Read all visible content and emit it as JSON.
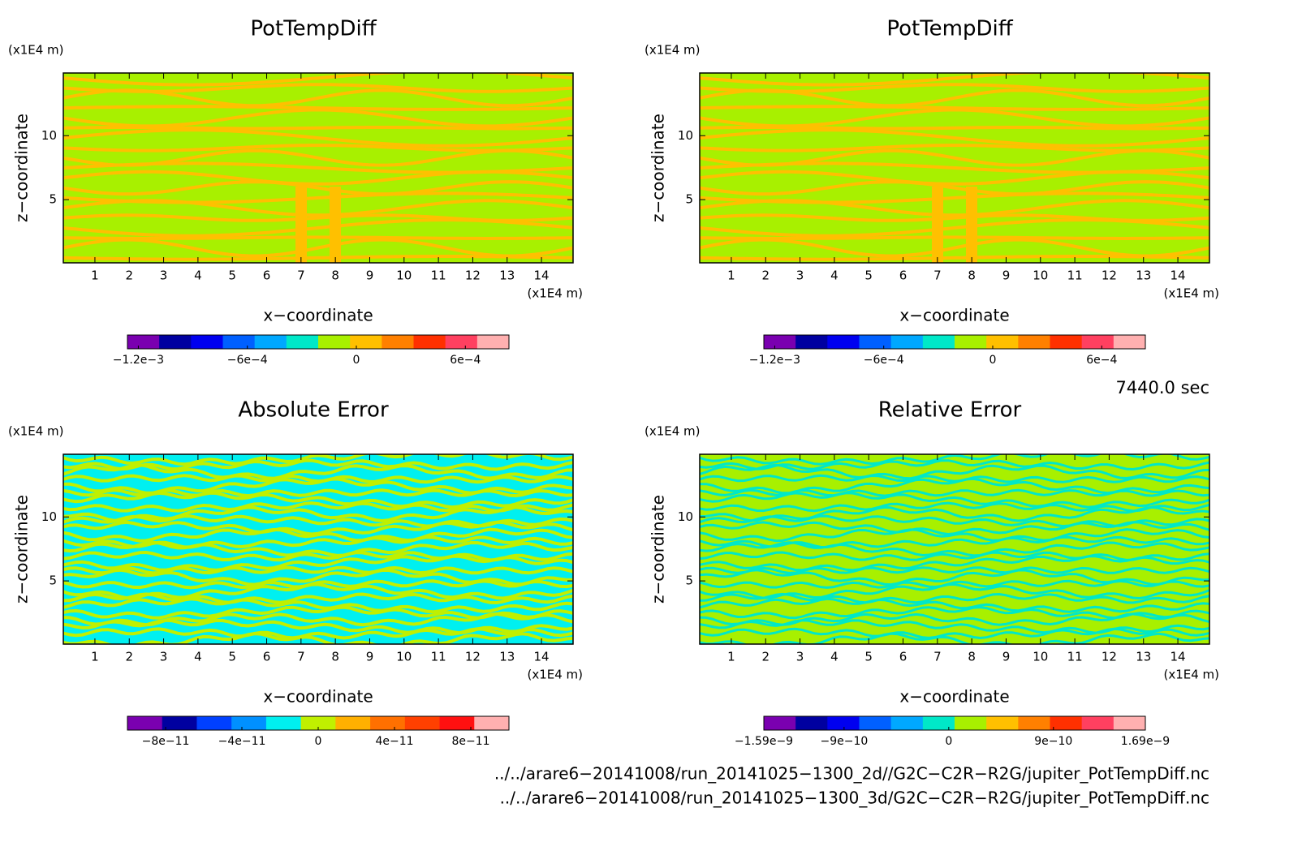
{
  "chart_data": [
    {
      "type": "contour",
      "title": "PotTempDiff",
      "xlabel": "x−coordinate",
      "ylabel": "z−coordinate",
      "x_unit": "(x1E4 m)",
      "y_unit": "(x1E4 m)",
      "xlim": [
        0.08,
        14.92
      ],
      "xticks": [
        1,
        2,
        3,
        4,
        5,
        6,
        7,
        8,
        9,
        10,
        11,
        12,
        13,
        14
      ],
      "ylim": [
        0.06,
        14.9
      ],
      "yticks": [
        5,
        10
      ],
      "colors": [
        "#7a00b0",
        "#0000a0",
        "#0000f0",
        "#0060ff",
        "#00a8ff",
        "#00e8c8",
        "#a8f000",
        "#ffc000",
        "#ff8000",
        "#ff3000",
        "#ff4060",
        "#ffb0b0"
      ],
      "clim": [
        -0.00126,
        0.00084
      ],
      "cticks": [
        {
          "value": -0.0012,
          "label": "−1.2e−3"
        },
        {
          "value": -0.0006,
          "label": "−6e−4"
        },
        0,
        {
          "value": 0.0006,
          "label": "6e−4"
        }
      ]
    },
    {
      "type": "contour",
      "title": "PotTempDiff",
      "xlabel": "x−coordinate",
      "ylabel": "z−coordinate",
      "x_unit": "(x1E4 m)",
      "y_unit": "(x1E4 m)",
      "xlim": [
        0.08,
        14.92
      ],
      "xticks": [
        1,
        2,
        3,
        4,
        5,
        6,
        7,
        8,
        9,
        10,
        11,
        12,
        13,
        14
      ],
      "ylim": [
        0.06,
        14.9
      ],
      "yticks": [
        5,
        10
      ],
      "colors": [
        "#7a00b0",
        "#0000a0",
        "#0000f0",
        "#0060ff",
        "#00a8ff",
        "#00e8c8",
        "#a8f000",
        "#ffc000",
        "#ff8000",
        "#ff3000",
        "#ff4060",
        "#ffb0b0"
      ],
      "clim": [
        -0.00126,
        0.00084
      ],
      "cticks": [
        {
          "value": -0.0012,
          "label": "−1.2e−3"
        },
        {
          "value": -0.0006,
          "label": "−6e−4"
        },
        0,
        {
          "value": 0.0006,
          "label": "6e−4"
        }
      ]
    },
    {
      "type": "contour",
      "title": "Absolute Error",
      "xlabel": "x−coordinate",
      "ylabel": "z−coordinate",
      "x_unit": "(x1E4 m)",
      "y_unit": "(x1E4 m)",
      "xlim": [
        0.08,
        14.92
      ],
      "xticks": [
        1,
        2,
        3,
        4,
        5,
        6,
        7,
        8,
        9,
        10,
        11,
        12,
        13,
        14
      ],
      "ylim": [
        0.06,
        14.9
      ],
      "yticks": [
        5,
        10
      ],
      "colors": [
        "#7a00b0",
        "#0000a0",
        "#0040ff",
        "#0090ff",
        "#00f0f0",
        "#c0f000",
        "#ffb000",
        "#ff7000",
        "#ff4000",
        "#ff1010",
        "#ffb0b0"
      ],
      "clim": [
        -1e-10,
        1e-10
      ],
      "cticks": [
        {
          "value": -8e-11,
          "label": "−8e−11"
        },
        {
          "value": -4e-11,
          "label": "−4e−11"
        },
        0,
        {
          "value": 4e-11,
          "label": "4e−11"
        },
        {
          "value": 8e-11,
          "label": "8e−11"
        }
      ]
    },
    {
      "type": "contour",
      "title": "Relative Error",
      "xlabel": "x−coordinate",
      "ylabel": "z−coordinate",
      "x_unit": "(x1E4 m)",
      "y_unit": "(x1E4 m)",
      "xlim": [
        0.08,
        14.92
      ],
      "xticks": [
        1,
        2,
        3,
        4,
        5,
        6,
        7,
        8,
        9,
        10,
        11,
        12,
        13,
        14
      ],
      "ylim": [
        0.06,
        14.9
      ],
      "yticks": [
        5,
        10
      ],
      "colors": [
        "#7a00b0",
        "#0000a0",
        "#0000f0",
        "#0060ff",
        "#00a8ff",
        "#00e8c8",
        "#a8f000",
        "#ffc000",
        "#ff8000",
        "#ff3000",
        "#ff4060",
        "#ffb0b0"
      ],
      "clim": [
        -1.59e-09,
        1.69e-09
      ],
      "cticks": [
        {
          "value": -1.59e-09,
          "label": "−1.59e−9"
        },
        {
          "value": -9e-10,
          "label": "−9e−10"
        },
        0,
        {
          "value": 9e-10,
          "label": "9e−10"
        },
        {
          "value": 1.69e-09,
          "label": "1.69e−9"
        }
      ]
    }
  ],
  "time_label": "7440.0 sec",
  "files": [
    "../../arare6−20141008/run_20141025−1300_2d//G2C−C2R−R2G/jupiter_PotTempDiff.nc",
    "../../arare6−20141008/run_20141025−1300_3d/G2C−C2R−R2G/jupiter_PotTempDiff.nc"
  ]
}
